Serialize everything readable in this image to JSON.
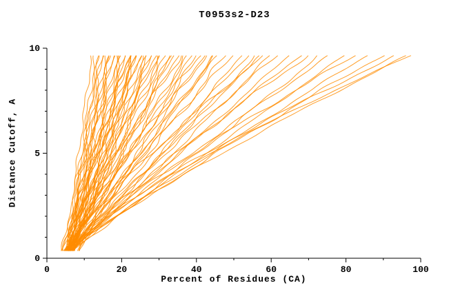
{
  "chart_data": {
    "type": "line",
    "title": "T0953s2-D23",
    "xlabel": "Percent of Residues (CA)",
    "ylabel": "Distance Cutoff, A",
    "xlim": [
      0,
      100
    ],
    "ylim": [
      0,
      10
    ],
    "x_ticks": [
      0,
      20,
      40,
      60,
      80,
      100
    ],
    "x_minor_ticks": [
      10,
      30,
      50,
      70,
      90
    ],
    "y_ticks": [
      0,
      5,
      10
    ],
    "y_minor_ticks": [
      1,
      2,
      3,
      4,
      6,
      7,
      8,
      9
    ],
    "grid": false,
    "legend": "none",
    "series_color": "#FF8C00",
    "axis_color": "#000000",
    "description": "Bundle of per-model GDT curves: percent of CA residues (x) fitting under each distance cutoff (y). Curves estimated from plot.",
    "curve_format": [
      "start_x_at_bottom",
      "end_x_at_top",
      "power",
      "wave_amp",
      "wave_phase"
    ],
    "curve_y_range": [
      0.35,
      9.7
    ],
    "curves": [
      [
        5.0,
        12,
        1.0,
        0.3,
        0.5
      ],
      [
        5.5,
        13,
        0.95,
        0.4,
        1.2
      ],
      [
        6.0,
        14,
        1.05,
        0.3,
        2.1
      ],
      [
        4.0,
        14,
        0.9,
        0.4,
        2.9
      ],
      [
        4.5,
        15,
        0.9,
        0.5,
        3.0
      ],
      [
        6.5,
        15,
        1.1,
        0.4,
        4.2
      ],
      [
        5.0,
        16,
        0.85,
        0.5,
        5.1
      ],
      [
        7.0,
        16,
        1.0,
        0.3,
        0.9
      ],
      [
        5.5,
        17,
        1.15,
        0.4,
        1.8
      ],
      [
        6.0,
        17,
        0.9,
        0.6,
        2.7
      ],
      [
        4.8,
        18,
        1.0,
        0.5,
        3.6
      ],
      [
        6.2,
        18,
        1.2,
        0.3,
        4.5
      ],
      [
        5.2,
        19,
        0.95,
        0.4,
        5.4
      ],
      [
        6.8,
        19,
        1.05,
        0.5,
        0.3
      ],
      [
        5.0,
        20,
        0.9,
        0.6,
        1.1
      ],
      [
        7.2,
        20,
        1.1,
        0.4,
        2.0
      ],
      [
        5.6,
        21,
        1.0,
        0.5,
        2.9
      ],
      [
        6.4,
        21,
        0.85,
        0.3,
        3.8
      ],
      [
        5.8,
        22,
        1.15,
        0.4,
        4.7
      ],
      [
        3.8,
        22,
        1.0,
        0.5,
        5.0
      ],
      [
        6.6,
        22,
        0.95,
        0.6,
        5.6
      ],
      [
        5.4,
        23,
        1.05,
        0.5,
        0.7
      ],
      [
        7.0,
        23,
        0.9,
        0.4,
        1.6
      ],
      [
        5.2,
        24,
        1.1,
        0.3,
        2.5
      ],
      [
        8.5,
        24,
        1.0,
        0.4,
        2.2
      ],
      [
        6.2,
        24,
        1.0,
        0.5,
        3.4
      ],
      [
        5.6,
        25,
        0.9,
        0.6,
        4.3
      ],
      [
        6.8,
        25,
        1.2,
        0.4,
        5.2
      ],
      [
        5.0,
        26,
        1.0,
        0.5,
        0.2
      ],
      [
        6.4,
        27,
        0.95,
        0.3,
        1.0
      ],
      [
        5.8,
        27,
        1.1,
        0.4,
        1.9
      ],
      [
        6.0,
        28,
        1.0,
        0.6,
        2.8
      ],
      [
        5.4,
        28,
        0.85,
        0.5,
        3.7
      ],
      [
        6.6,
        29,
        1.05,
        0.4,
        4.6
      ],
      [
        5.2,
        30,
        1.15,
        0.3,
        5.5
      ],
      [
        6.2,
        30,
        0.95,
        0.5,
        0.4
      ],
      [
        5.6,
        31,
        1.0,
        0.6,
        1.3
      ],
      [
        6.8,
        32,
        1.1,
        0.4,
        2.2
      ],
      [
        5.0,
        33,
        0.9,
        0.5,
        3.1
      ],
      [
        9.0,
        33,
        1.05,
        0.5,
        4.4
      ],
      [
        6.0,
        34,
        1.05,
        0.3,
        4.0
      ],
      [
        5.8,
        35,
        1.0,
        0.4,
        4.9
      ],
      [
        6.4,
        36,
        1.2,
        0.6,
        5.8
      ],
      [
        5.4,
        37,
        0.95,
        0.5,
        0.6
      ],
      [
        6.6,
        38,
        1.05,
        0.4,
        1.5
      ],
      [
        5.6,
        39,
        1.0,
        0.3,
        2.4
      ],
      [
        6.2,
        40,
        0.9,
        0.5,
        3.3
      ],
      [
        5.2,
        41,
        1.1,
        0.6,
        4.2
      ],
      [
        6.8,
        42,
        1.0,
        0.4,
        5.1
      ],
      [
        5.8,
        43,
        1.15,
        0.5,
        0.1
      ],
      [
        6.0,
        45,
        0.95,
        0.3,
        0.9
      ],
      [
        8.0,
        45,
        1.1,
        0.4,
        1.1
      ],
      [
        5.4,
        46,
        1.05,
        0.4,
        1.8
      ],
      [
        6.4,
        48,
        1.0,
        0.6,
        2.7
      ],
      [
        5.6,
        50,
        1.1,
        0.5,
        3.6
      ],
      [
        6.2,
        52,
        0.9,
        0.4,
        4.5
      ],
      [
        5.8,
        54,
        1.05,
        0.3,
        5.4
      ],
      [
        6.6,
        56,
        1.0,
        0.5,
        0.3
      ],
      [
        5.2,
        58,
        1.2,
        0.6,
        1.2
      ],
      [
        8.8,
        58,
        1.15,
        0.3,
        3.3
      ],
      [
        6.0,
        60,
        0.95,
        0.4,
        2.1
      ],
      [
        5.6,
        62,
        1.1,
        0.5,
        3.0
      ],
      [
        6.4,
        65,
        1.0,
        0.3,
        3.9
      ],
      [
        5.4,
        68,
        1.05,
        0.4,
        4.8
      ],
      [
        6.2,
        70,
        1.15,
        0.6,
        5.7
      ],
      [
        5.8,
        73,
        0.95,
        0.5,
        0.5
      ],
      [
        6.6,
        76,
        1.1,
        0.4,
        1.4
      ],
      [
        5.6,
        80,
        1.0,
        0.3,
        2.3
      ],
      [
        6.0,
        83,
        1.2,
        0.5,
        3.2
      ],
      [
        5.4,
        86,
        1.05,
        0.4,
        4.1
      ],
      [
        6.8,
        90,
        1.1,
        0.6,
        5.0
      ],
      [
        5.8,
        94,
        1.25,
        0.5,
        0.8
      ],
      [
        6.2,
        97,
        1.15,
        0.4,
        1.7
      ],
      [
        7.0,
        98,
        1.3,
        0.3,
        2.6
      ]
    ]
  }
}
